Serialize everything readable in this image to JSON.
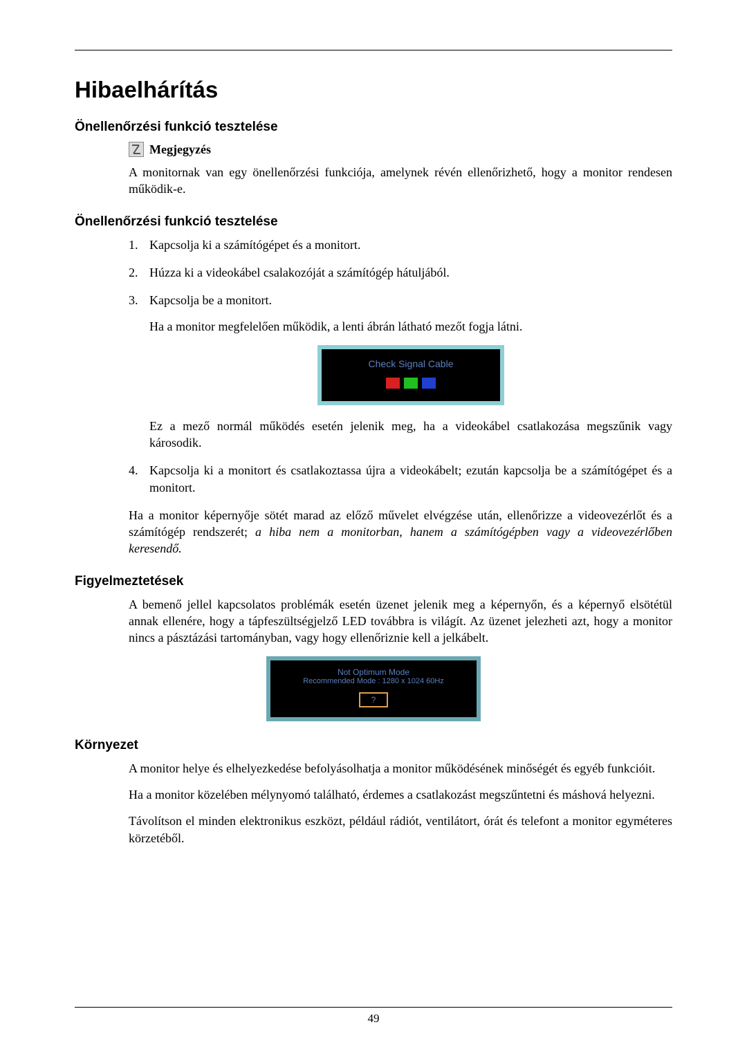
{
  "page_number": "49",
  "title": "Hibaelhárítás",
  "section1": {
    "heading": "Önellenőrzési funkció tesztelése",
    "note_label": "Megjegyzés",
    "note_text": "A monitornak van egy önellenőrzési funkciója, amelynek révén ellenőrizhető, hogy a monitor rendesen működik-e."
  },
  "section2": {
    "heading": "Önellenőrzési funkció tesztelése",
    "step1": "Kapcsolja ki a számítógépet és a monitort.",
    "step2": "Húzza ki a videokábel csalakozóját a számítógép hátuljából.",
    "step3": "Kapcsolja be a monitort.",
    "step3_sub1": "Ha a monitor megfelelően működik, a lenti ábrán látható mezőt fogja látni.",
    "step3_sub2": "Ez a mező normál működés esetén jelenik meg, ha a videokábel csatlakozása megszűnik vagy károsodik.",
    "step4": "Kapcsolja ki a monitort és csatlakoztassa újra a videokábelt; ezután kapcsolja be a számítógépet és a monitort.",
    "closing_plain": "Ha a monitor képernyője sötét marad az előző művelet elvégzése után, ellenőrizze a videovezérlőt és a számítógép rendszerét; ",
    "closing_italic": "a hiba nem a monitorban, hanem a számítógépben vagy a videovezérlőben keresendő."
  },
  "diagram1": {
    "text": "Check Signal Cable",
    "border_color": "#8ecfd4",
    "bg_color": "#000000",
    "text_color": "#5b7fbf",
    "colors": [
      "#d82020",
      "#20c020",
      "#2040d0"
    ]
  },
  "section3": {
    "heading": "Figyelmeztetések",
    "text": "A bemenő jellel kapcsolatos problémák esetén üzenet jelenik meg a képernyőn, és a képernyő elsötétül annak ellenére, hogy a tápfeszültségjelző LED továbbra is világít. Az üzenet jelezheti azt, hogy a monitor nincs a pásztázási tartományban, vagy hogy ellenőriznie kell a jelkábelt."
  },
  "diagram2": {
    "line1": "Not Optimum Mode",
    "line2": "Recommended Mode : 1280 x 1024   60Hz",
    "button": "?",
    "border_color": "#6aa8b4",
    "bg_color": "#000000",
    "text_color": "#5b7fbf",
    "button_border": "#e0a050"
  },
  "section4": {
    "heading": "Környezet",
    "p1": "A monitor helye és elhelyezkedése befolyásolhatja a monitor működésének minőségét és egyéb funkcióit.",
    "p2": "Ha a monitor közelében mélynyomó található, érdemes a csatlakozást megszűntetni és máshová helyezni.",
    "p3": "Távolítson el minden elektronikus eszközt, például rádiót, ventilátort, órát és telefont a monitor egyméteres körzetéből."
  }
}
